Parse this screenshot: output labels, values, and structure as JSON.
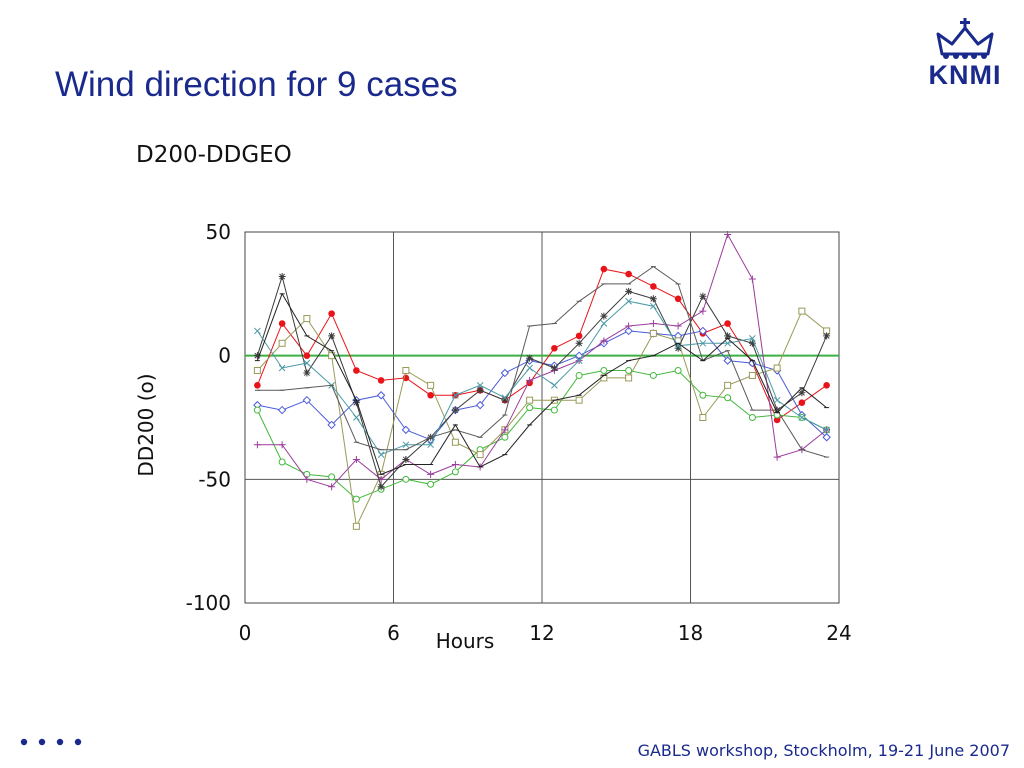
{
  "slide": {
    "title": "Wind direction for 9 cases",
    "footer": "GABLS workshop, Stockholm, 19-21 June 2007",
    "logo_text": "KNMI",
    "brand_color": "#1a2a8c"
  },
  "chart_data": {
    "type": "line",
    "title": "D200-DDGEO",
    "xlabel": "Hours",
    "ylabel": "DD200 (o)",
    "xlim": [
      0,
      24
    ],
    "ylim": [
      -100,
      50
    ],
    "xticks": [
      0,
      6,
      12,
      18,
      24
    ],
    "yticks": [
      -100,
      -50,
      0,
      50
    ],
    "grid": true,
    "reference_line": {
      "y": 0,
      "color": "#3cb043"
    },
    "series": [
      {
        "color": "#e8141a",
        "marker": "dot",
        "x": [
          0.5,
          1.5,
          2.5,
          3.5,
          4.5,
          5.5,
          6.5,
          7.5,
          8.5,
          9.5,
          10.5,
          11.5,
          12.5,
          13.5,
          14.5,
          15.5,
          16.5,
          17.5,
          18.5,
          19.5,
          20.5,
          21.5,
          22.5,
          23.5
        ],
        "y": [
          -12,
          13,
          0,
          17,
          -6,
          -10,
          -9,
          -16,
          -16,
          -14,
          -18,
          -11,
          3,
          8,
          35,
          33,
          28,
          23,
          9,
          13,
          -3,
          -26,
          -19,
          -12
        ]
      },
      {
        "color": "#4a5cd8",
        "marker": "diamond",
        "x": [
          0.5,
          1.5,
          2.5,
          3.5,
          4.5,
          5.5,
          6.5,
          7.5,
          8.5,
          9.5,
          10.5,
          11.5,
          12.5,
          13.5,
          14.5,
          15.5,
          16.5,
          17.5,
          18.5,
          19.5,
          20.5,
          21.5,
          22.5,
          23.5
        ],
        "y": [
          -20,
          -22,
          -18,
          -28,
          -18,
          -16,
          -30,
          -34,
          -22,
          -20,
          -7,
          -2,
          -4,
          0,
          5,
          10,
          9,
          8,
          10,
          -2,
          -3,
          -6,
          -24,
          -33
        ]
      },
      {
        "color": "#42b83c",
        "marker": "circle",
        "x": [
          0.5,
          1.5,
          2.5,
          3.5,
          4.5,
          5.5,
          6.5,
          7.5,
          8.5,
          9.5,
          10.5,
          11.5,
          12.5,
          13.5,
          14.5,
          15.5,
          16.5,
          17.5,
          18.5,
          19.5,
          20.5,
          21.5,
          22.5,
          23.5
        ],
        "y": [
          -22,
          -43,
          -48,
          -49,
          -58,
          -54,
          -50,
          -52,
          -47,
          -38,
          -33,
          -21,
          -22,
          -8,
          -6,
          -6,
          -8,
          -6,
          -16,
          -17,
          -25,
          -24,
          -25,
          -30
        ]
      },
      {
        "color": "#9a9a58",
        "marker": "square",
        "x": [
          0.5,
          1.5,
          2.5,
          3.5,
          4.5,
          5.5,
          6.5,
          7.5,
          8.5,
          9.5,
          10.5,
          11.5,
          12.5,
          13.5,
          14.5,
          15.5,
          16.5,
          17.5,
          18.5,
          19.5,
          20.5,
          21.5,
          22.5,
          23.5
        ],
        "y": [
          -6,
          5,
          15,
          0,
          -69,
          -48,
          -6,
          -12,
          -35,
          -40,
          -30,
          -18,
          -18,
          -18,
          -9,
          -9,
          9,
          6,
          -25,
          -12,
          -8,
          -5,
          18,
          10
        ]
      },
      {
        "color": "#9a3c9a",
        "marker": "plus",
        "x": [
          0.5,
          1.5,
          2.5,
          3.5,
          4.5,
          5.5,
          6.5,
          7.5,
          8.5,
          9.5,
          10.5,
          11.5,
          12.5,
          13.5,
          14.5,
          15.5,
          16.5,
          17.5,
          18.5,
          19.5,
          20.5,
          21.5,
          22.5,
          23.5
        ],
        "y": [
          -36,
          -36,
          -50,
          -53,
          -42,
          -50,
          -42,
          -48,
          -44,
          -45,
          -30,
          -10,
          -6,
          -2,
          6,
          12,
          13,
          12,
          18,
          49,
          31,
          -41,
          -38,
          -30
        ]
      },
      {
        "color": "#3c3c3c",
        "marker": "star",
        "x": [
          0.5,
          1.5,
          2.5,
          3.5,
          4.5,
          5.5,
          6.5,
          7.5,
          8.5,
          9.5,
          10.5,
          11.5,
          12.5,
          13.5,
          14.5,
          15.5,
          16.5,
          17.5,
          18.5,
          19.5,
          20.5,
          21.5,
          22.5,
          23.5
        ],
        "y": [
          0,
          32,
          -7,
          8,
          -19,
          -53,
          -42,
          -33,
          -22,
          -14,
          -18,
          -1,
          -5,
          5,
          16,
          26,
          23,
          3,
          24,
          8,
          5,
          -22,
          -15,
          8
        ]
      },
      {
        "color": "#4a9aa6",
        "marker": "x",
        "x": [
          0.5,
          1.5,
          2.5,
          3.5,
          4.5,
          5.5,
          6.5,
          7.5,
          8.5,
          9.5,
          10.5,
          11.5,
          12.5,
          13.5,
          14.5,
          15.5,
          16.5,
          17.5,
          18.5,
          19.5,
          20.5,
          21.5,
          22.5,
          23.5
        ],
        "y": [
          10,
          -5,
          -3,
          -12,
          -25,
          -40,
          -36,
          -36,
          -16,
          -12,
          -17,
          -5,
          -12,
          -2,
          13,
          22,
          20,
          4,
          5,
          5,
          7,
          -18,
          -25,
          -30
        ]
      },
      {
        "color": "#5a5a5a",
        "marker": "tick",
        "x": [
          0.5,
          1.5,
          2.5,
          3.5,
          4.5,
          5.5,
          6.5,
          7.5,
          8.5,
          9.5,
          10.5,
          11.5,
          12.5,
          13.5,
          14.5,
          15.5,
          16.5,
          17.5,
          18.5,
          19.5,
          20.5,
          21.5,
          22.5,
          23.5
        ],
        "y": [
          -14,
          -14,
          -13,
          -12,
          -35,
          -38,
          -38,
          -33,
          -30,
          -33,
          -24,
          12,
          13,
          22,
          29,
          29,
          36,
          29,
          -2,
          2,
          -22,
          -22,
          -38,
          -41
        ]
      },
      {
        "color": "#222222",
        "marker": "tick",
        "x": [
          0.5,
          1.5,
          2.5,
          3.5,
          4.5,
          5.5,
          6.5,
          7.5,
          8.5,
          9.5,
          10.5,
          11.5,
          12.5,
          13.5,
          14.5,
          15.5,
          16.5,
          17.5,
          18.5,
          19.5,
          20.5,
          21.5,
          22.5,
          23.5
        ],
        "y": [
          -2,
          25,
          8,
          2,
          -18,
          -48,
          -44,
          -44,
          -28,
          -45,
          -40,
          -28,
          -18,
          -16,
          -8,
          -2,
          0,
          5,
          -2,
          7,
          -2,
          -23,
          -13,
          -21
        ]
      }
    ]
  }
}
